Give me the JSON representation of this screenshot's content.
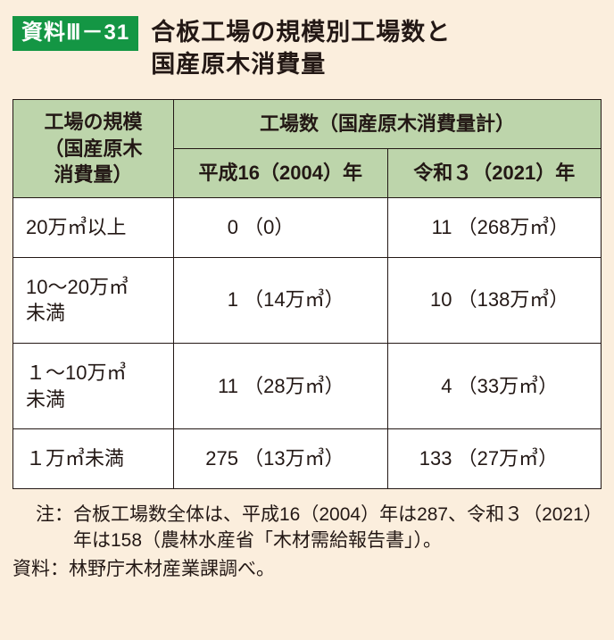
{
  "badge": "資料Ⅲ－31",
  "title_line1": "合板工場の規模別工場数と",
  "title_line2": "国産原木消費量",
  "table": {
    "header_left_l1": "工場の規模",
    "header_left_l2": "（国産原木",
    "header_left_l3": "消費量）",
    "header_right_top": "工場数（国産原木消費量計）",
    "header_col2004": "平成16（2004）年",
    "header_col2021": "令和３（2021）年",
    "rows": [
      {
        "scale": "20万㎥以上",
        "v2004_n": "0",
        "v2004_p": "（0）",
        "v2021_n": "11",
        "v2021_p": "（268万㎥）"
      },
      {
        "scale": "10～20万㎥\n未満",
        "v2004_n": "1",
        "v2004_p": "（14万㎥）",
        "v2021_n": "10",
        "v2021_p": "（138万㎥）"
      },
      {
        "scale": "１～10万㎥\n未満",
        "v2004_n": "11",
        "v2004_p": "（28万㎥）",
        "v2021_n": "4",
        "v2021_p": "（33万㎥）"
      },
      {
        "scale": "１万㎥未満",
        "v2004_n": "275",
        "v2004_p": "（13万㎥）",
        "v2021_n": "133",
        "v2021_p": "（27万㎥）"
      }
    ]
  },
  "notes": {
    "n1_label": "注：",
    "n1_body": "合板工場数全体は、平成16（2004）年は287、令和３（2021）年は158（農林水産省「木材需給報告書」）。",
    "n2_label": "資料：",
    "n2_body": "林野庁木材産業課調べ。"
  }
}
